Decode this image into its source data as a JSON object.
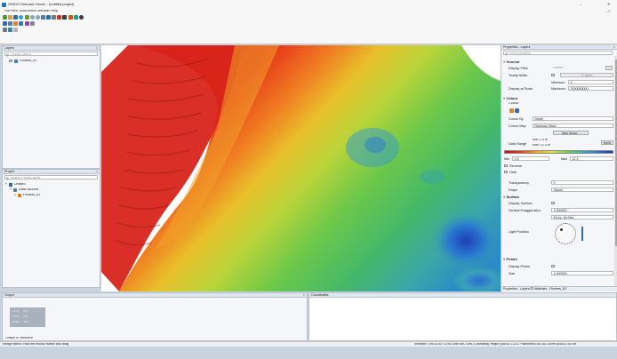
{
  "window": {
    "title": "GRIDS Onboard Viewer - [untitled project]"
  },
  "menu": [
    "File",
    "View",
    "Tools",
    "Select",
    "Window",
    "Help"
  ],
  "layers": {
    "header": "Layers",
    "search_placeholder": "Search Layers",
    "item": "Flinders_63"
  },
  "project": {
    "header": "Project",
    "search_placeholder": "Search Project Items",
    "root": "Untitled",
    "child": "Data Sources",
    "grandchild": "Flinders_63"
  },
  "properties": {
    "header": "Properties - Layers",
    "find_placeholder": "Find a property",
    "general": "General",
    "display_filter_label": "Display Filter",
    "display_filter_value": "<none>",
    "tooltip_fields_label": "Tooltip fields",
    "tooltip_fields_value": "(1 fixed)",
    "minimum_label": "Minimum",
    "minimum_value": "0",
    "display_scale_label": "Display at Scale",
    "maximum_label": "Maximum",
    "maximum_value": "2000000000",
    "colour_section": "Colour",
    "colour_label": "Colour",
    "colour_by_label": "Colour By",
    "colour_by_value": "Depth",
    "colour_map_label": "Colour Map",
    "colour_map_value": "Rainbow (Map)",
    "new_group_button": "New Group...",
    "data_range_label": "Data Range",
    "data_range_min": "Min: 1.5 m",
    "data_range_max": "Max: 12.3 m",
    "apply_button": "Apply",
    "min_label": "Min",
    "min_value": "1.5",
    "max_label": "Max",
    "max_value": "12.3",
    "reverse_label": "Reverse",
    "hide_label": "Hide",
    "transparency_label": "Transparency",
    "transparency_value": "0",
    "drape_label": "Drape",
    "drape_value": "(None)",
    "surface_section": "Surface",
    "display_surface_label": "Display Surface",
    "vertical_exag_label": "Vertical Exaggeration",
    "vertical_exag_value": "1.000000",
    "az_value": "45  Az, 45  Elev",
    "light_position_label": "Light Position",
    "points_section": "Points",
    "display_points_label": "Display Points",
    "size_label": "Size",
    "size_value": "1.000000",
    "footer_tabs": "Properties - Layers  ☰ Attributes - Flinders_63"
  },
  "output": {
    "header": "Output",
    "cpu_label": "CPU",
    "cpu_value": "3%",
    "gpu_label": "GPU",
    "gpu_value": "1%",
    "ram_label": "RAM",
    "ram_value": "363",
    "tabs": "Output  ☰ Selection"
  },
  "coordinates": {
    "header": "Coordinates"
  },
  "status": {
    "left": "Range select: Hold left mouse button and drag",
    "right": "Selected: 0  WGS 84 / UTM Zone 55S  •  AHD (Tasmania) Height (NAVD) 1:2217  Plan/metric 467161.35 mt  5540427.64 mt"
  },
  "colors": {
    "accent": "#2b6cb0",
    "panel": "#f4f6f9",
    "title_bg": "#f2f2f2",
    "panel_header": "#dfe6ee"
  }
}
